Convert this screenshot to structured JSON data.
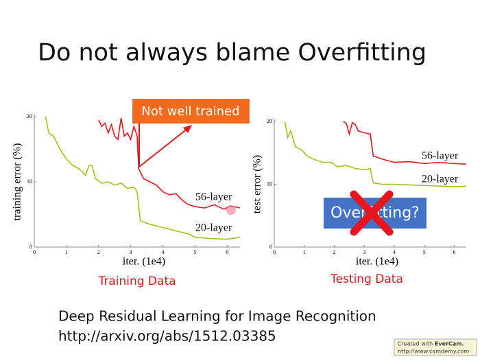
{
  "title": "Do not always blame Overfitting",
  "chart_data": [
    {
      "type": "line",
      "caption": "Training Data",
      "annotation": "Not well trained",
      "xlabel": "iter. (1e4)",
      "ylabel": "training error (%)",
      "xlim": [
        0,
        6.4
      ],
      "ylim": [
        0,
        20
      ],
      "xticks": [
        0,
        1,
        2,
        3,
        4,
        5,
        6
      ],
      "yticks": [
        0,
        10,
        20
      ],
      "series": [
        {
          "name": "56-layer",
          "color": "#e8141e",
          "x": [
            2.0,
            2.1,
            2.2,
            2.3,
            2.4,
            2.5,
            2.6,
            2.7,
            2.8,
            2.9,
            3.0,
            3.1,
            3.2,
            3.25,
            3.4,
            3.6,
            3.8,
            4.0,
            4.2,
            4.4,
            4.6,
            4.8,
            5.0,
            5.3,
            5.6,
            5.9,
            6.1,
            6.4
          ],
          "values": [
            19.5,
            18.5,
            19,
            17.5,
            18.8,
            17,
            16.5,
            19.8,
            17,
            17.5,
            16.5,
            18.5,
            17,
            12,
            10.5,
            10,
            9.5,
            8.5,
            8,
            8.2,
            7.2,
            6.5,
            6.2,
            6,
            6.5,
            5.8,
            6.3,
            6
          ]
        },
        {
          "name": "20-layer",
          "color": "#9ec41a",
          "x": [
            0.35,
            0.45,
            0.6,
            0.8,
            1.0,
            1.2,
            1.4,
            1.6,
            1.7,
            1.8,
            1.9,
            2.1,
            2.3,
            2.5,
            2.7,
            2.9,
            3.1,
            3.2,
            3.3,
            3.6,
            4.0,
            4.4,
            4.8,
            5.0,
            5.5,
            6.0,
            6.4
          ],
          "values": [
            20,
            17.5,
            17,
            15,
            13.5,
            12.5,
            12,
            11,
            12.5,
            12.5,
            10.5,
            9.8,
            10,
            9.5,
            9.8,
            9,
            9.2,
            8.5,
            4,
            3.5,
            3,
            2.5,
            2,
            1.5,
            1.3,
            1.2,
            1.5
          ]
        }
      ]
    },
    {
      "type": "line",
      "caption": "Testing Data",
      "annotation": "Overfitting?",
      "xlabel": "iter. (1e4)",
      "ylabel": "test error (%)",
      "xlim": [
        0,
        6.4
      ],
      "ylim": [
        0,
        20
      ],
      "xticks": [
        0,
        1,
        2,
        3,
        4,
        5,
        6
      ],
      "yticks": [
        0,
        10,
        20
      ],
      "series": [
        {
          "name": "56-layer",
          "color": "#e8141e",
          "x": [
            2.3,
            2.4,
            2.5,
            2.6,
            2.7,
            2.8,
            3.0,
            3.2,
            3.3,
            3.6,
            4.0,
            4.5,
            5.0,
            5.5,
            6.0,
            6.4
          ],
          "values": [
            20,
            19.7,
            18,
            19.8,
            19.5,
            18.5,
            18.2,
            18,
            14.5,
            14,
            13.5,
            13.6,
            13.3,
            13.5,
            13.3,
            13.2
          ]
        },
        {
          "name": "20-layer",
          "color": "#9ec41a",
          "x": [
            0.35,
            0.45,
            0.55,
            0.7,
            0.9,
            1.1,
            1.3,
            1.6,
            1.9,
            2.1,
            2.4,
            2.7,
            3.0,
            3.2,
            3.3,
            3.6,
            4.0,
            4.5,
            5.0,
            5.5,
            6.0,
            6.4
          ],
          "values": [
            20,
            17.5,
            18.5,
            16,
            15.5,
            14.5,
            14,
            13.5,
            13.5,
            12.8,
            13,
            12.5,
            12.3,
            12.5,
            10.2,
            10,
            10,
            9.9,
            9.8,
            9.7,
            9.6,
            9.7
          ]
        }
      ]
    }
  ],
  "reference": {
    "title": "Deep Residual Learning for Image Recognition",
    "url": "http://arxiv.org/abs/1512.03385"
  },
  "watermark": {
    "prefix": "Created with",
    "brand": "EverCam.",
    "url": "http://www.camdemy.com"
  }
}
